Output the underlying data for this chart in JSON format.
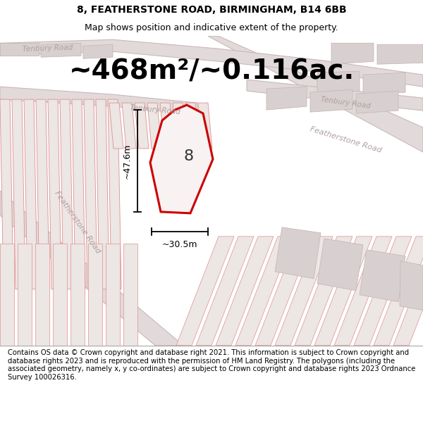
{
  "title": "8, FEATHERSTONE ROAD, BIRMINGHAM, B14 6BB",
  "subtitle": "Map shows position and indicative extent of the property.",
  "area_label": "~468m²/~0.116ac.",
  "width_label": "~30.5m",
  "height_label": "~47.6m",
  "number_label": "8",
  "footer": "Contains OS data © Crown copyright and database right 2021. This information is subject to Crown copyright and database rights 2023 and is reproduced with the permission of HM Land Registry. The polygons (including the associated geometry, namely x, y co-ordinates) are subject to Crown copyright and database rights 2023 Ordnance Survey 100026316.",
  "bg_color": "#f2eded",
  "map_bg": "#f0eaea",
  "road_fill": "#e2dada",
  "road_ec": "#c8b8b8",
  "plot_fc": "#ede8e8",
  "plot_ec": "#e08888",
  "block_fc": "#d8d0d0",
  "block_ec": "#c8b8b8",
  "highlight_color": "#cc0000",
  "highlight_fc": "#f8f2f2",
  "text_road_color": "#b0a0a0",
  "title_fontsize": 10,
  "subtitle_fontsize": 9,
  "area_fontsize": 28,
  "footer_fontsize": 7.2,
  "number_fontsize": 16
}
